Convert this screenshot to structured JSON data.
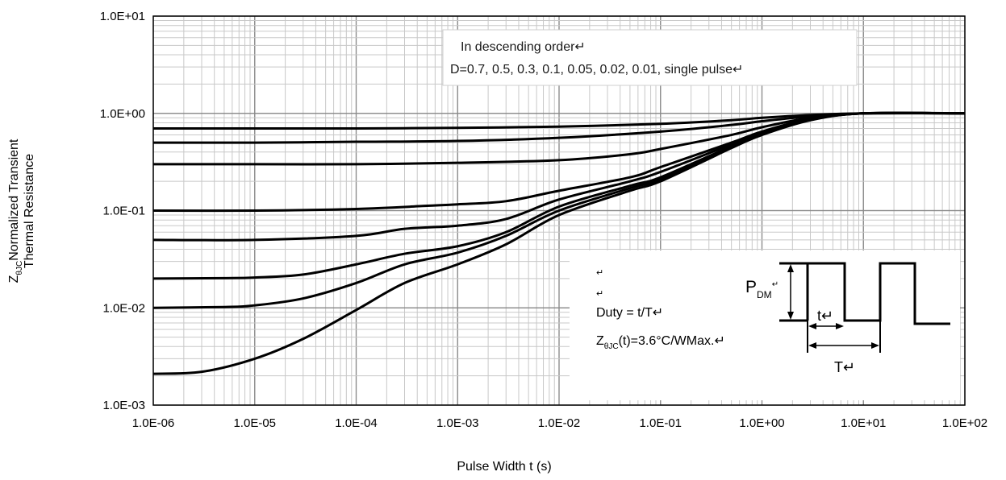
{
  "chart_data": {
    "type": "line",
    "title": "",
    "xlabel": "Pulse Width t (s)",
    "ylabel_line1_prefix": "Z",
    "ylabel_line1_sub": "θJC",
    "ylabel_line1_suffix": "Normalized Transient",
    "ylabel_line2": "Thermal Resistance",
    "x_scale": "log",
    "y_scale": "log",
    "xlim": [
      1e-06,
      100
    ],
    "ylim": [
      0.001,
      10
    ],
    "grid": true,
    "x_ticks": [
      {
        "value": 1e-06,
        "label": "1.0E-06"
      },
      {
        "value": 1e-05,
        "label": "1.0E-05"
      },
      {
        "value": 0.0001,
        "label": "1.0E-04"
      },
      {
        "value": 0.001,
        "label": "1.0E-03"
      },
      {
        "value": 0.01,
        "label": "1.0E-02"
      },
      {
        "value": 0.1,
        "label": "1.0E-01"
      },
      {
        "value": 1,
        "label": "1.0E+00"
      },
      {
        "value": 10,
        "label": "1.0E+01"
      },
      {
        "value": 100,
        "label": "1.0E+02"
      }
    ],
    "y_ticks": [
      {
        "value": 10,
        "label": "1.0E+01"
      },
      {
        "value": 1,
        "label": "1.0E+00"
      },
      {
        "value": 0.1,
        "label": "1.0E-01"
      },
      {
        "value": 0.01,
        "label": "1.0E-02"
      },
      {
        "value": 0.001,
        "label": "1.0E-03"
      }
    ],
    "legend_note": {
      "line1": "In descending order↵",
      "line2": "D=0.7, 0.5, 0.3, 0.1, 0.05, 0.02, 0.01, single pulse↵"
    },
    "series": [
      {
        "x": [
          1e-06,
          1e-05,
          0.0001,
          0.001,
          0.01,
          0.1,
          0.5,
          1,
          3,
          10,
          100
        ],
        "y": [
          0.7,
          0.7,
          0.7,
          0.71,
          0.73,
          0.78,
          0.85,
          0.9,
          0.96,
          1.0,
          1.0
        ]
      },
      {
        "x": [
          1e-06,
          1e-05,
          0.0001,
          0.001,
          0.01,
          0.1,
          0.5,
          1,
          3,
          10,
          100
        ],
        "y": [
          0.5,
          0.5,
          0.51,
          0.52,
          0.56,
          0.65,
          0.76,
          0.83,
          0.93,
          1.0,
          1.0
        ]
      },
      {
        "x": [
          1e-06,
          1e-05,
          0.0001,
          0.001,
          0.01,
          0.05,
          0.1,
          0.5,
          1,
          3,
          10,
          100
        ],
        "y": [
          0.3,
          0.3,
          0.3,
          0.31,
          0.33,
          0.38,
          0.43,
          0.6,
          0.72,
          0.9,
          1.0,
          1.0
        ]
      },
      {
        "x": [
          1e-06,
          1e-05,
          0.0001,
          0.0005,
          0.001,
          0.003,
          0.01,
          0.05,
          0.1,
          0.5,
          1,
          3,
          10,
          100
        ],
        "y": [
          0.1,
          0.1,
          0.104,
          0.112,
          0.116,
          0.125,
          0.16,
          0.22,
          0.28,
          0.5,
          0.65,
          0.88,
          1.0,
          1.0
        ]
      },
      {
        "x": [
          1e-06,
          1e-05,
          0.0001,
          0.0003,
          0.001,
          0.003,
          0.01,
          0.05,
          0.1,
          0.5,
          1,
          3,
          10,
          100
        ],
        "y": [
          0.05,
          0.05,
          0.055,
          0.065,
          0.07,
          0.082,
          0.13,
          0.2,
          0.25,
          0.48,
          0.63,
          0.87,
          1.0,
          1.0
        ]
      },
      {
        "x": [
          1e-06,
          5e-06,
          1e-05,
          3e-05,
          0.0001,
          0.0003,
          0.001,
          0.003,
          0.01,
          0.05,
          0.1,
          0.5,
          1,
          3,
          10,
          100
        ],
        "y": [
          0.02,
          0.0202,
          0.0205,
          0.022,
          0.028,
          0.036,
          0.043,
          0.06,
          0.11,
          0.18,
          0.22,
          0.46,
          0.62,
          0.86,
          1.0,
          1.0
        ]
      },
      {
        "x": [
          1e-06,
          5e-06,
          1e-05,
          3e-05,
          0.0001,
          0.0003,
          0.001,
          0.003,
          0.01,
          0.05,
          0.1,
          0.5,
          1,
          3,
          10,
          100
        ],
        "y": [
          0.01,
          0.0102,
          0.0106,
          0.0125,
          0.018,
          0.028,
          0.037,
          0.055,
          0.1,
          0.17,
          0.21,
          0.45,
          0.61,
          0.86,
          1.0,
          1.0
        ]
      },
      {
        "x": [
          1e-06,
          3e-06,
          1e-05,
          3e-05,
          0.0001,
          0.0003,
          0.001,
          0.003,
          0.01,
          0.05,
          0.1,
          0.5,
          1,
          3,
          10,
          100
        ],
        "y": [
          0.0021,
          0.0022,
          0.003,
          0.0048,
          0.0095,
          0.018,
          0.028,
          0.045,
          0.09,
          0.16,
          0.2,
          0.44,
          0.6,
          0.85,
          1.0,
          1.0
        ]
      }
    ],
    "inset": {
      "marks": [
        "↵",
        "↵"
      ],
      "duty": "Duty = t/T↵",
      "z_prefix": "Z",
      "z_sub": "θJC",
      "z_suffix": "(t)=3.6°C/WMax.↵",
      "pdm_prefix": "P",
      "pdm_sub": "DM",
      "pdm_mark": "↵",
      "t_label": "t↵",
      "T_label": "T↵"
    }
  }
}
